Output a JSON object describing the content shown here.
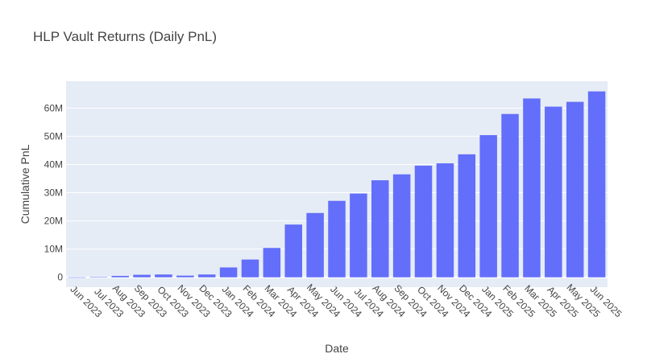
{
  "chart_data": {
    "type": "bar",
    "title": "HLP Vault Returns (Daily PnL)",
    "xlabel": "Date",
    "ylabel": "Cumulative PnL",
    "categories": [
      "Jun 2023",
      "Jul 2023",
      "Aug 2023",
      "Sep 2023",
      "Oct 2023",
      "Nov 2023",
      "Dec 2023",
      "Jan 2024",
      "Feb 2024",
      "Mar 2024",
      "Apr 2024",
      "May 2024",
      "Jun 2024",
      "Jul 2024",
      "Aug 2024",
      "Sep 2024",
      "Oct 2024",
      "Nov 2024",
      "Dec 2024",
      "Jan 2025",
      "Feb 2025",
      "Mar 2025",
      "Apr 2025",
      "May 2025",
      "Jun 2025"
    ],
    "values": [
      0,
      0.1,
      0.5,
      0.9,
      1.0,
      0.6,
      1.0,
      3.5,
      6.3,
      10.4,
      18.7,
      22.8,
      27.1,
      29.7,
      34.4,
      36.5,
      39.6,
      40.4,
      43.6,
      50.4,
      57.9,
      63.4,
      60.5,
      62.2,
      65.9
    ],
    "units": "M",
    "yticks": [
      0,
      10,
      20,
      30,
      40,
      50,
      60
    ],
    "ytick_labels": [
      "0",
      "10M",
      "20M",
      "30M",
      "40M",
      "50M",
      "60M"
    ],
    "ylim": [
      -3.5,
      69.5
    ],
    "grid": true,
    "colors": {
      "bar": "#636efa",
      "plot_bg": "#e5ecf6",
      "grid": "#ffffff",
      "text": "#444444"
    }
  }
}
